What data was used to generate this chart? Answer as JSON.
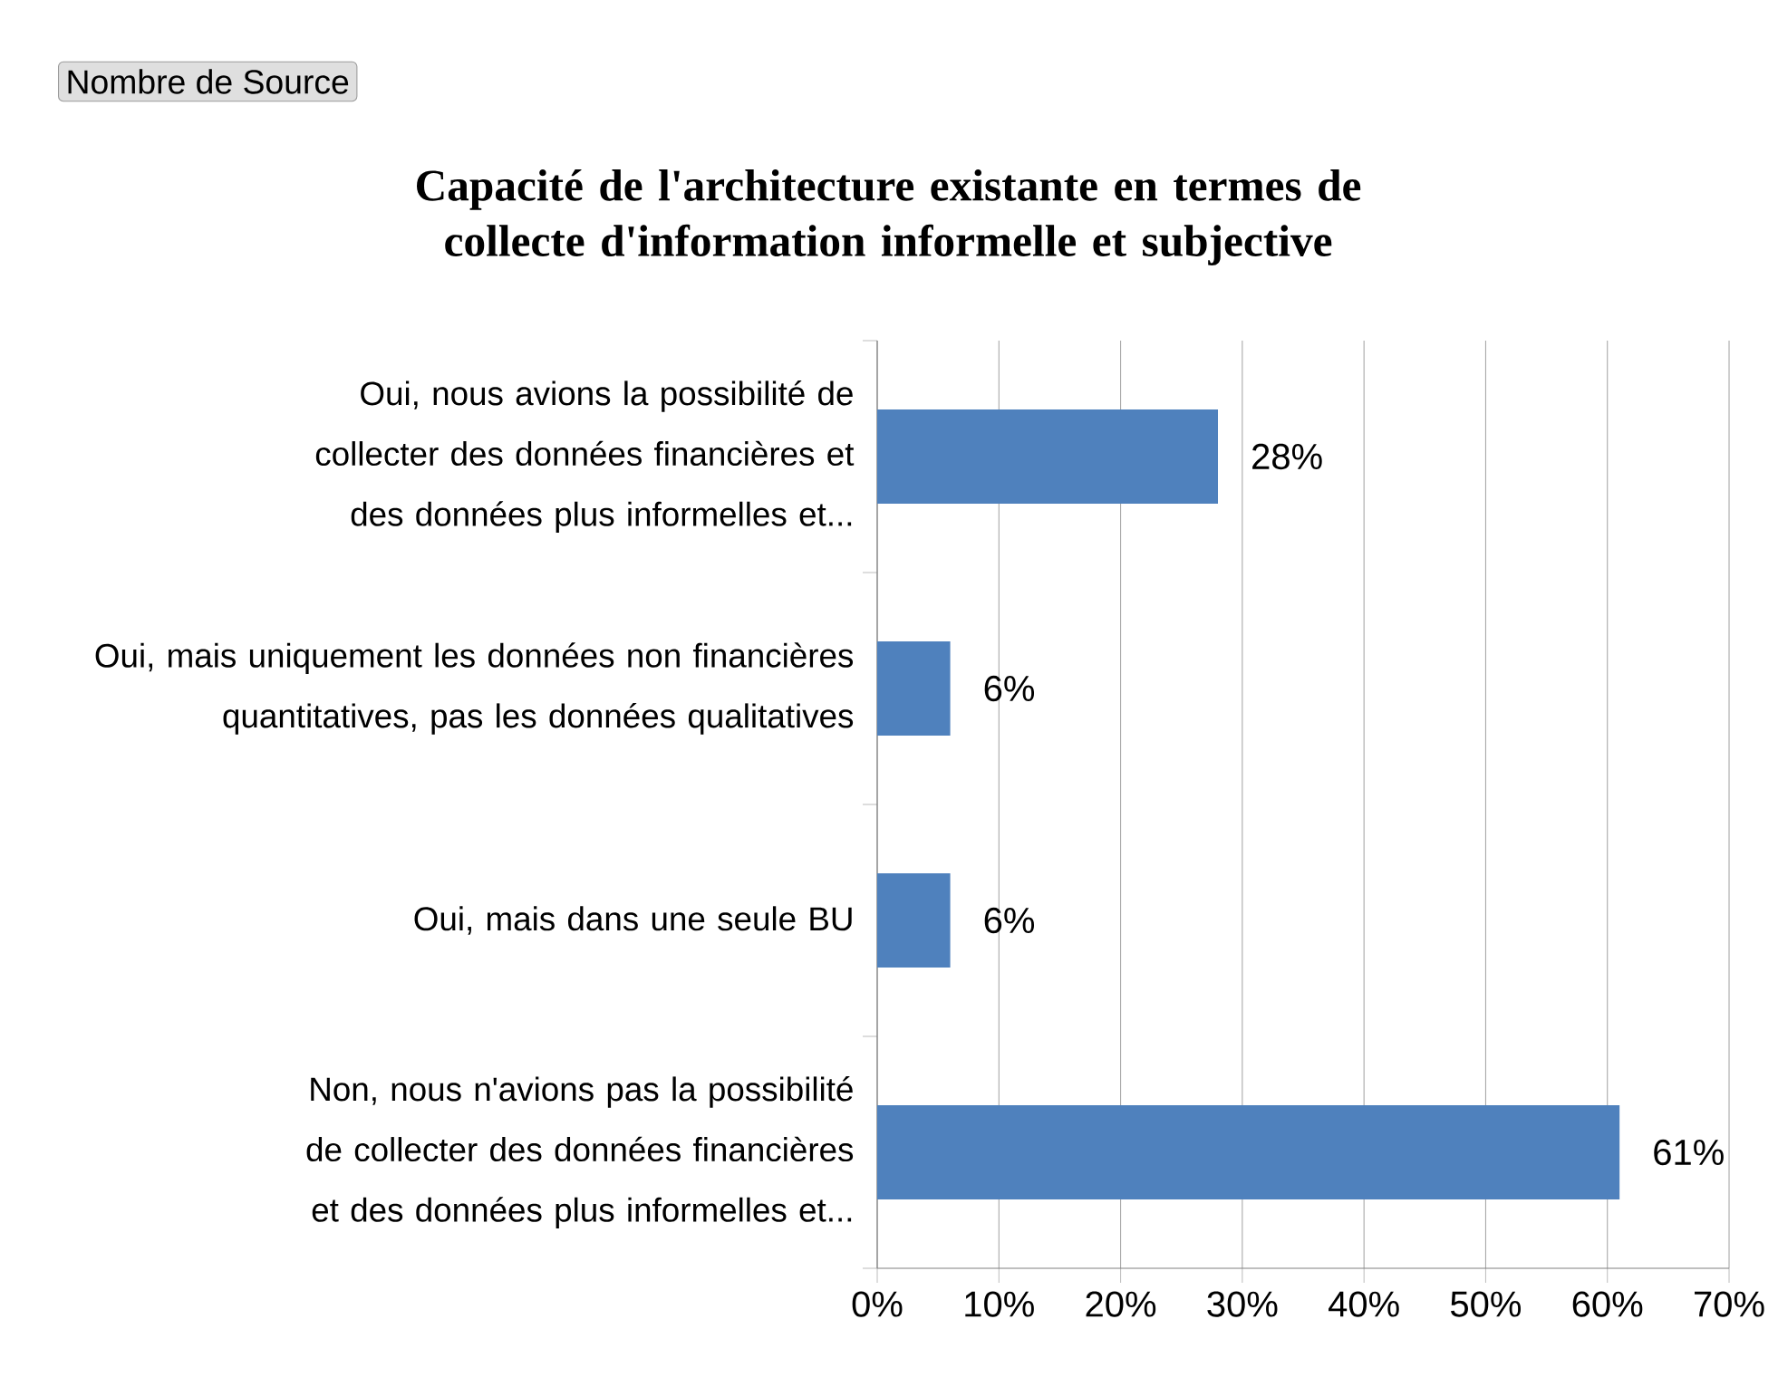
{
  "chart_data": {
    "type": "bar",
    "orientation": "horizontal",
    "title": "Capacité de l'architecture existante en termes de collecte d'information informelle et subjective",
    "annotations": [
      "Nombre de Source"
    ],
    "categories": [
      "Oui, nous avions la possibilité de collecter des données financières et des données plus informelles et...",
      "Oui, mais uniquement les données non financières quantitatives, pas les données qualitatives",
      "Oui, mais dans une seule BU",
      "Non, nous n'avions pas la possibilité de collecter des données financières et des données plus informelles et..."
    ],
    "values": [
      28,
      6,
      6,
      61
    ],
    "value_labels": [
      "28%",
      "6%",
      "6%",
      "61%"
    ],
    "color": "#4f81bd",
    "xlim": [
      0,
      70
    ],
    "xticks": [
      {
        "value": 0,
        "label": "0%"
      },
      {
        "value": 10,
        "label": "10%"
      },
      {
        "value": 20,
        "label": "20%"
      },
      {
        "value": 30,
        "label": "30%"
      },
      {
        "value": 40,
        "label": "40%"
      },
      {
        "value": 50,
        "label": "50%"
      },
      {
        "value": 60,
        "label": "60%"
      },
      {
        "value": 70,
        "label": "70%"
      }
    ],
    "grid": "x"
  }
}
